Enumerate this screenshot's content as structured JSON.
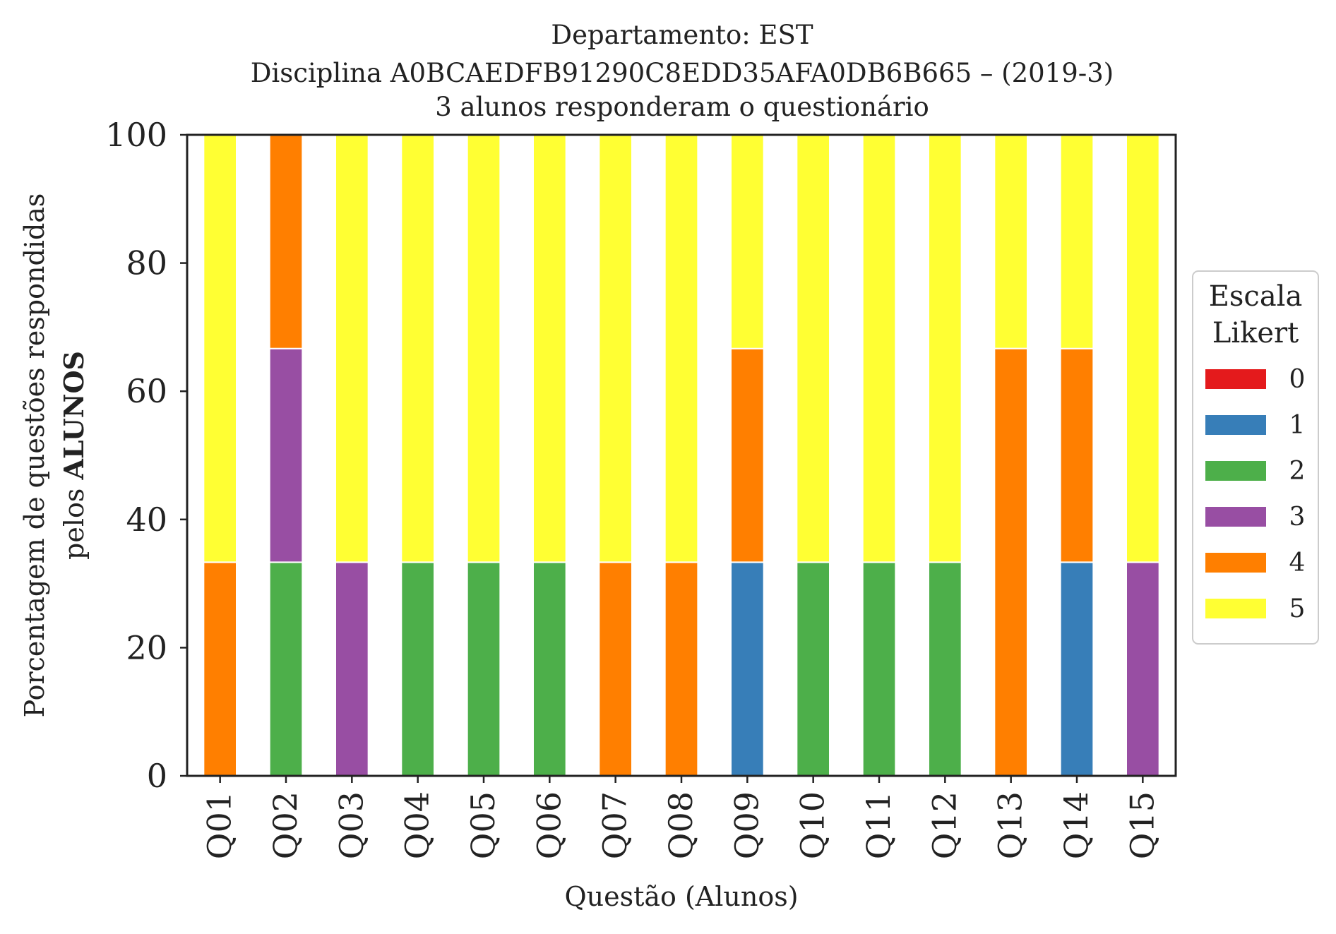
{
  "chart_data": {
    "type": "bar",
    "stacked": true,
    "title": "Departamento: EST",
    "subtitle": "Disciplina A0BCAEDFB91290C8EDD35AFA0DB6B665 – (2019-3)",
    "subtitle2": "3 alunos responderam o questionário",
    "xlabel": "Questão (Alunos)",
    "ylabel_line1": "Porcentagem de questões respondidas",
    "ylabel_line2_prefix": "pelos ",
    "ylabel_line2_bold": "ALUNOS",
    "ylim": [
      0,
      100
    ],
    "yticks": [
      "0",
      "20",
      "40",
      "60",
      "80",
      "100"
    ],
    "grid": false,
    "categories": [
      "Q01",
      "Q02",
      "Q03",
      "Q04",
      "Q05",
      "Q06",
      "Q07",
      "Q08",
      "Q09",
      "Q10",
      "Q11",
      "Q12",
      "Q13",
      "Q14",
      "Q15"
    ],
    "legend": {
      "title_line1": "Escala",
      "title_line2": "Likert",
      "placement": "right"
    },
    "series": [
      {
        "name": "0",
        "color": "#e41a1c",
        "values": [
          0,
          0,
          0,
          0,
          0,
          0,
          0,
          0,
          0,
          0,
          0,
          0,
          0,
          0,
          0
        ]
      },
      {
        "name": "1",
        "color": "#377eb8",
        "values": [
          0,
          0,
          0,
          0,
          0,
          0,
          0,
          0,
          33.33,
          0,
          0,
          0,
          0,
          33.33,
          0
        ]
      },
      {
        "name": "2",
        "color": "#4daf4a",
        "values": [
          0,
          33.33,
          0,
          33.33,
          33.33,
          33.33,
          0,
          0,
          0,
          33.33,
          33.33,
          33.33,
          0,
          0,
          0
        ]
      },
      {
        "name": "3",
        "color": "#984ea3",
        "values": [
          0,
          33.33,
          33.33,
          0,
          0,
          0,
          0,
          0,
          0,
          0,
          0,
          0,
          0,
          0,
          33.33
        ]
      },
      {
        "name": "4",
        "color": "#ff7f00",
        "values": [
          33.33,
          33.33,
          0,
          0,
          0,
          0,
          33.33,
          33.33,
          33.33,
          0,
          0,
          0,
          66.67,
          33.33,
          0
        ]
      },
      {
        "name": "5",
        "color": "#ffff33",
        "values": [
          66.67,
          0,
          66.67,
          66.67,
          66.67,
          66.67,
          66.67,
          66.67,
          33.33,
          66.67,
          66.67,
          66.67,
          33.33,
          33.33,
          66.67
        ]
      }
    ]
  }
}
